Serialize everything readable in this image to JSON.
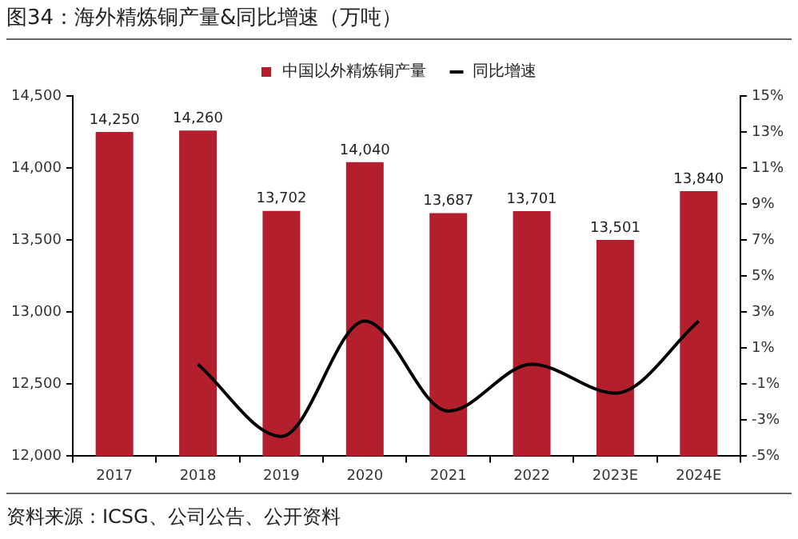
{
  "chart_data": {
    "type": "bar",
    "title": "图34：海外精炼铜产量&同比增速（万吨）",
    "categories": [
      "2017",
      "2018",
      "2019",
      "2020",
      "2021",
      "2022",
      "2023E",
      "2024E"
    ],
    "series": [
      {
        "name": "中国以外精炼铜产量",
        "color": "#b41f2e",
        "values": [
          14250,
          14260,
          13702,
          14040,
          13687,
          13701,
          13501,
          13840
        ],
        "value_labels": [
          "14,250",
          "14,260",
          "13,702",
          "14,040",
          "13,687",
          "13,701",
          "13,501",
          "13,840"
        ]
      },
      {
        "name": "同比增速",
        "type": "line",
        "axis": "y2",
        "color": "#000000",
        "values": [
          null,
          0.1,
          -3.9,
          2.5,
          -2.5,
          0.1,
          -1.5,
          2.5
        ]
      }
    ],
    "ylim": [
      12000,
      14500
    ],
    "yticks": [
      {
        "value": 12000,
        "label": "12,000"
      },
      {
        "value": 12500,
        "label": "12,500"
      },
      {
        "value": 13000,
        "label": "13,000"
      },
      {
        "value": 13500,
        "label": "13,500"
      },
      {
        "value": 14000,
        "label": "14,000"
      },
      {
        "value": 14500,
        "label": "14,500"
      }
    ],
    "y2lim": [
      -5,
      15
    ],
    "y2ticks": [
      {
        "value": -5,
        "label": "-5%"
      },
      {
        "value": -3,
        "label": "-3%"
      },
      {
        "value": -1,
        "label": "-1%"
      },
      {
        "value": 1,
        "label": "1%"
      },
      {
        "value": 3,
        "label": "3%"
      },
      {
        "value": 5,
        "label": "5%"
      },
      {
        "value": 7,
        "label": "7%"
      },
      {
        "value": 9,
        "label": "9%"
      },
      {
        "value": 11,
        "label": "11%"
      },
      {
        "value": 13,
        "label": "13%"
      },
      {
        "value": 15,
        "label": "15%"
      }
    ],
    "legend": "top",
    "grid": false,
    "marker": "none",
    "line_style": "solid",
    "annotations": [
      "资料来源：ICSG、公司公告、公开资料"
    ]
  }
}
